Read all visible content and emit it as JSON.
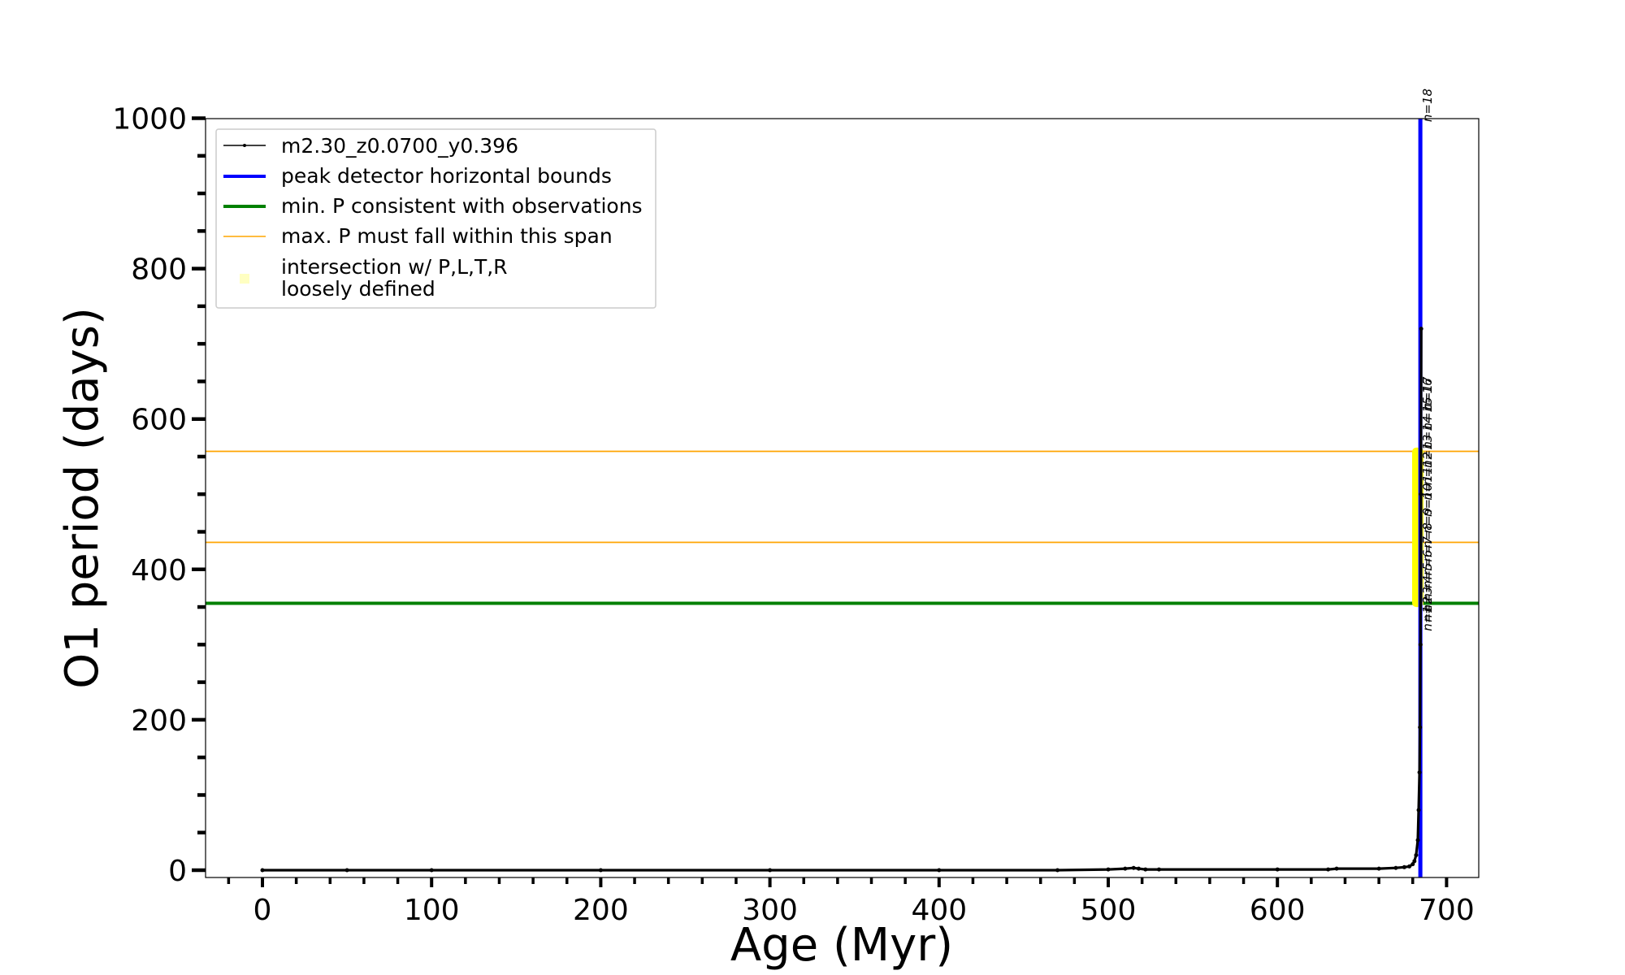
{
  "chart_data": {
    "type": "line",
    "title": "",
    "xlabel": "Age (Myr)",
    "ylabel": "O1 period (days)",
    "xlim": [
      -35,
      720
    ],
    "ylim": [
      -10,
      1000
    ],
    "xticks": [
      0,
      100,
      200,
      300,
      400,
      500,
      600,
      700
    ],
    "yticks": [
      0,
      200,
      400,
      600,
      800,
      1000
    ],
    "grid": false,
    "legend_position": "top-left",
    "legend": [
      {
        "label": "m2.30_z0.0700_y0.396",
        "color": "#000000",
        "style": "line-dot"
      },
      {
        "label": "peak detector horizontal bounds",
        "color": "#0000ff",
        "style": "thick-line"
      },
      {
        "label": "min. P consistent with observations",
        "color": "#008000",
        "style": "thick-line"
      },
      {
        "label": "max. P must fall within this span",
        "color": "#ffa500",
        "style": "thin-line"
      },
      {
        "label_line1": "intersection w/ P,L,T,R",
        "label_line2": "loosely defined",
        "color": "#ffff99",
        "style": "marker"
      }
    ],
    "series": [
      {
        "name": "m2.30_z0.0700_y0.396",
        "color": "#000000",
        "x": [
          0,
          50,
          100,
          200,
          300,
          400,
          470,
          500,
          510,
          515,
          518,
          522,
          530,
          600,
          630,
          635,
          660,
          670,
          675,
          678,
          680,
          681,
          682,
          683,
          683.5,
          684,
          684.3,
          684.6,
          684.8,
          685
        ],
        "y": [
          0,
          0,
          0,
          0,
          0,
          0,
          0,
          1,
          2,
          3,
          2,
          1,
          1,
          1,
          1,
          2,
          2,
          3,
          4,
          5,
          8,
          12,
          20,
          40,
          80,
          130,
          190,
          300,
          500,
          720
        ]
      }
    ],
    "horizontal_lines": [
      {
        "name": "min. P consistent with observations",
        "y": 355,
        "color": "#008000"
      },
      {
        "name": "max. P must fall within this span",
        "y": 436,
        "color": "#ffa500"
      },
      {
        "name": "max. P must fall within this span",
        "y": 557,
        "color": "#ffa500"
      }
    ],
    "vertical_line": {
      "name": "peak detector horizontal bounds",
      "x": 684.5,
      "color": "#0000ff"
    },
    "highlight_span": {
      "x": 683,
      "y_min": 350,
      "y_max": 562,
      "color": "#ffff00"
    },
    "n_labels": [
      {
        "text": "n=18",
        "y": 995
      },
      {
        "text": "n=17",
        "y": 612
      },
      {
        "text": "n=16",
        "y": 610
      },
      {
        "text": "n=15",
        "y": 585
      },
      {
        "text": "n=14",
        "y": 560
      },
      {
        "text": "n=13",
        "y": 535
      },
      {
        "text": "n=12",
        "y": 512
      },
      {
        "text": "n=11",
        "y": 492
      },
      {
        "text": "n=10",
        "y": 470
      },
      {
        "text": "n=9",
        "y": 448
      },
      {
        "text": "n=8",
        "y": 428
      },
      {
        "text": "n=7",
        "y": 410
      },
      {
        "text": "n=6",
        "y": 392
      },
      {
        "text": "n=5",
        "y": 375
      },
      {
        "text": "n=4",
        "y": 358
      },
      {
        "text": "n=3",
        "y": 343
      },
      {
        "text": "n=2",
        "y": 330
      },
      {
        "text": "n=1",
        "y": 318
      }
    ]
  }
}
